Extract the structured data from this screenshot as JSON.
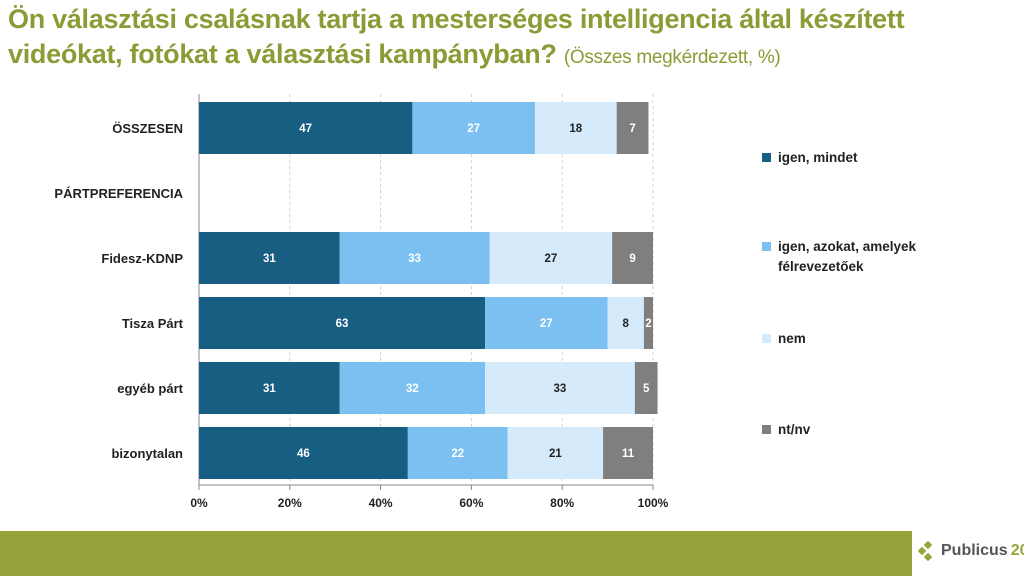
{
  "title": {
    "main": "Ön választási csalásnak tartja a mesterséges intelligencia által készített videókat, fotókat a választási kampányban?",
    "sub": "(Összes megkérdezett, %)"
  },
  "logo": {
    "name": "Publicus",
    "number": "20"
  },
  "chart_data": {
    "type": "bar",
    "orientation": "horizontal",
    "stacked": true,
    "categories": [
      "ÖSSZESEN",
      "PÁRTPREFERENCIA",
      "Fidesz-KDNP",
      "Tisza Párt",
      "egyéb párt",
      "bizonytalan"
    ],
    "series": [
      {
        "name": "igen, mindet",
        "color": "#175e82",
        "label_color": "#ffffff",
        "values": [
          47,
          null,
          31,
          63,
          31,
          46
        ]
      },
      {
        "name": "igen, azokat, amelyek félrevezetőek",
        "color": "#7cc0f2",
        "label_color": "#ffffff",
        "values": [
          27,
          null,
          33,
          27,
          32,
          22
        ]
      },
      {
        "name": "nem",
        "color": "#d5eafa",
        "label_color": "#222222",
        "values": [
          18,
          null,
          27,
          8,
          33,
          21
        ]
      },
      {
        "name": "nt/nv",
        "color": "#7f7f7f",
        "label_color": "#ffffff",
        "values": [
          7,
          null,
          9,
          2,
          5,
          11
        ]
      }
    ],
    "xlim": [
      0,
      100
    ],
    "xticks": [
      "0%",
      "20%",
      "40%",
      "60%",
      "80%",
      "100%"
    ],
    "grid": true,
    "legend": "right"
  }
}
